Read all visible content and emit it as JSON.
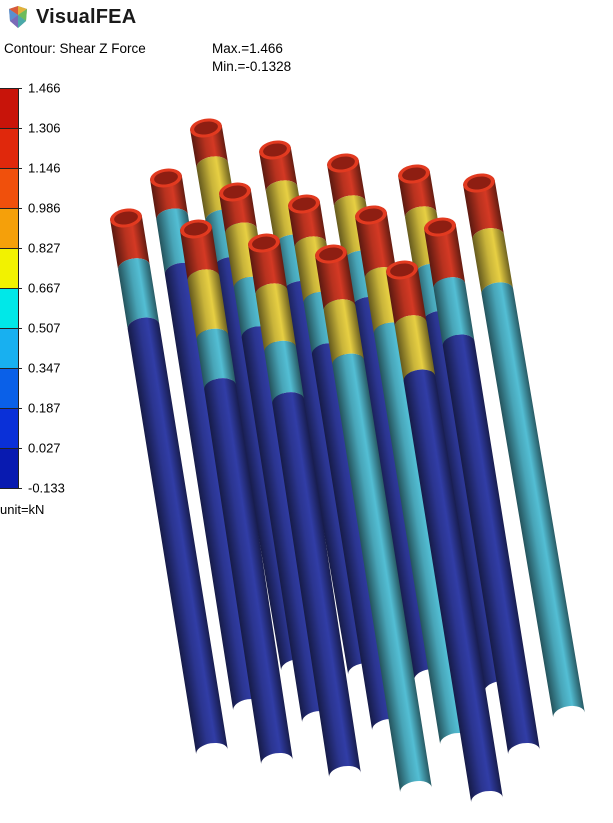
{
  "app": {
    "title": "VisualFEA",
    "logo_icon": "visualfea-logo-icon"
  },
  "contour": {
    "label": "Contour: Shear Z Force",
    "max_label": "Max.=1.466",
    "min_label": "Min.=-0.1328",
    "unit_label": "unit=kN"
  },
  "legend": {
    "tick_labels": [
      "1.466",
      "1.306",
      "1.146",
      "0.986",
      "0.827",
      "0.667",
      "0.507",
      "0.347",
      "0.187",
      "0.027",
      "-0.133"
    ],
    "band_colors": [
      "#c8140a",
      "#e0280c",
      "#f0500c",
      "#f5a00a",
      "#f2f200",
      "#00e8e8",
      "#18b0f0",
      "#0a60e8",
      "#0a30d8",
      "#081ab0"
    ]
  },
  "piles": [
    {
      "id": "pile-row1-1",
      "bands": [
        "#b8321f",
        "#c9b43a",
        "#48a5b8",
        "#2b3590"
      ]
    },
    {
      "id": "pile-row1-2",
      "bands": [
        "#b8321f",
        "#c9b43a",
        "#48a5b8",
        "#2b3590"
      ]
    },
    {
      "id": "pile-row1-3",
      "bands": [
        "#b8321f",
        "#c9b43a",
        "#48a5b8",
        "#2b3590"
      ]
    },
    {
      "id": "pile-row1-4",
      "bands": [
        "#b8321f",
        "#c9b43a",
        "#48a5b8",
        "#2b3590"
      ]
    },
    {
      "id": "pile-row1-5",
      "bands": [
        "#b8321f",
        "#c9b43a",
        "#48a5b8",
        "#2b3590"
      ]
    },
    {
      "id": "pile-row1-6",
      "bands": [
        "#b8321f",
        "#48a5b8",
        "#2b3590"
      ]
    },
    {
      "id": "pile-row2-1",
      "bands": [
        "#b8321f",
        "#c9b43a",
        "#48a5b8",
        "#2b3590"
      ]
    },
    {
      "id": "pile-row2-2",
      "bands": [
        "#b8321f",
        "#c9b43a",
        "#48a5b8",
        "#2b3590"
      ]
    },
    {
      "id": "pile-row2-3",
      "bands": [
        "#b8321f",
        "#c9b43a",
        "#48a5b8",
        "#2b3590"
      ]
    },
    {
      "id": "pile-row2-4",
      "bands": [
        "#b8321f",
        "#48a5b8",
        "#2b3590"
      ]
    },
    {
      "id": "pile-row2-5",
      "bands": [
        "#b8321f",
        "#48a5b8",
        "#2b3590"
      ]
    },
    {
      "id": "pile-row3-1",
      "bands": [
        "#b8321f",
        "#c9b43a",
        "#48a5b8",
        "#2b3590"
      ]
    },
    {
      "id": "pile-row3-2",
      "bands": [
        "#b8321f",
        "#c9b43a",
        "#48a5b8",
        "#2b3590"
      ]
    },
    {
      "id": "pile-row3-3",
      "bands": [
        "#b8321f",
        "#c9b43a",
        "#48a5b8",
        "#2b3590"
      ]
    },
    {
      "id": "pile-row3-4",
      "bands": [
        "#b8321f",
        "#c9b43a",
        "#2b3590"
      ]
    },
    {
      "id": "pile-row3-5",
      "bands": [
        "#b8321f",
        "#48a5b8",
        "#2b3590"
      ]
    }
  ]
}
